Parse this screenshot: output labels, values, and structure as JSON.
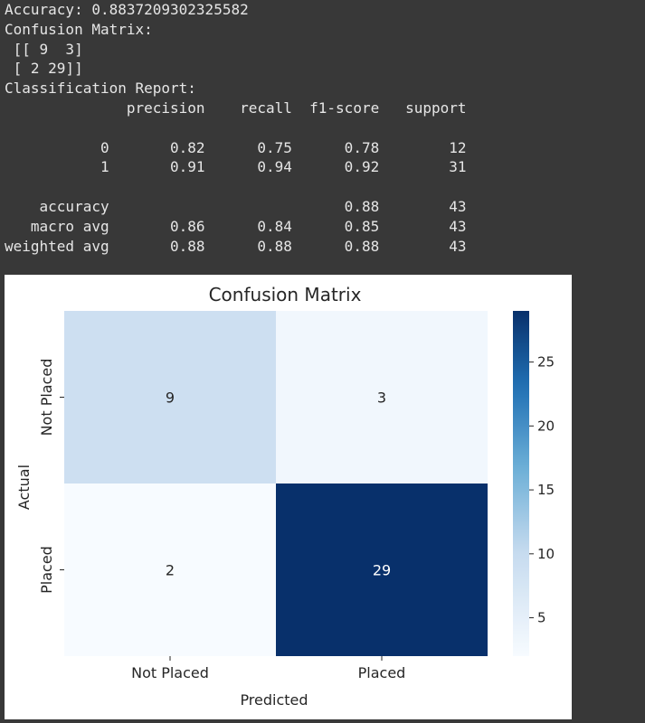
{
  "console": {
    "lines": [
      "Accuracy: 0.8837209302325582",
      "Confusion Matrix:",
      " [[ 9  3]",
      " [ 2 29]]",
      "Classification Report:",
      "              precision    recall  f1-score   support",
      "",
      "           0       0.82      0.75      0.78        12",
      "           1       0.91      0.94      0.92        31",
      "",
      "    accuracy                           0.88        43",
      "   macro avg       0.86      0.84      0.85        43",
      "weighted avg       0.88      0.88      0.88        43"
    ]
  },
  "chart_data": {
    "type": "heatmap",
    "title": "Confusion Matrix",
    "xlabel": "Predicted",
    "ylabel": "Actual",
    "x_categories": [
      "Not Placed",
      "Placed"
    ],
    "y_categories": [
      "Not Placed",
      "Placed"
    ],
    "values": [
      [
        9,
        3
      ],
      [
        2,
        29
      ]
    ],
    "annotations": true,
    "colormap": "Blues",
    "colorbar": {
      "min": 2,
      "max": 29,
      "ticks": [
        5,
        10,
        15,
        20,
        25
      ]
    },
    "colors": {
      "low": "#f7fbff",
      "high": "#08306b",
      "dark_text": "#262626",
      "light_text": "#ffffff"
    }
  }
}
